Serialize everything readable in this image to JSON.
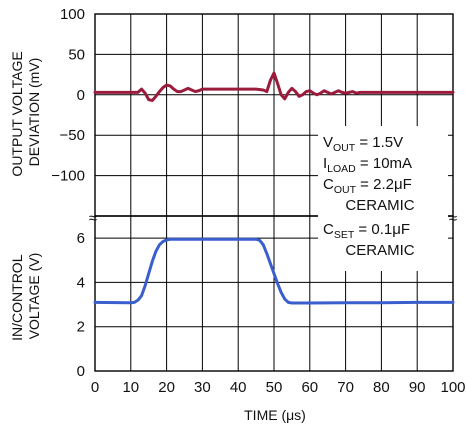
{
  "chart_data": [
    {
      "type": "line",
      "panel": "top",
      "ylabel_lines": [
        "OUTPUT VOLTAGE",
        "DEVIATION (mV)"
      ],
      "ylim": [
        -150,
        100
      ],
      "yticks": [
        {
          "value": 100,
          "label": "100"
        },
        {
          "value": 50,
          "label": "50"
        },
        {
          "value": 0,
          "label": "0"
        },
        {
          "value": -50,
          "label": "−50"
        },
        {
          "value": -100,
          "label": "−100"
        }
      ],
      "grid": true,
      "series": [
        {
          "color": "#9b1b3c",
          "points": [
            [
              0,
              3
            ],
            [
              11,
              3
            ],
            [
              12,
              3
            ],
            [
              13,
              7
            ],
            [
              14,
              2
            ],
            [
              15,
              -6
            ],
            [
              16,
              -7
            ],
            [
              17,
              -2
            ],
            [
              18,
              4
            ],
            [
              19,
              9
            ],
            [
              20,
              12
            ],
            [
              21,
              11
            ],
            [
              22,
              7
            ],
            [
              23,
              4
            ],
            [
              24,
              4
            ],
            [
              25,
              6
            ],
            [
              26,
              8
            ],
            [
              27,
              6
            ],
            [
              28,
              4
            ],
            [
              29,
              5
            ],
            [
              30,
              7
            ],
            [
              35,
              7
            ],
            [
              40,
              7
            ],
            [
              45,
              7
            ],
            [
              47,
              6
            ],
            [
              48,
              4
            ],
            [
              49,
              18
            ],
            [
              50,
              27
            ],
            [
              51,
              14
            ],
            [
              52,
              0
            ],
            [
              53,
              -5
            ],
            [
              54,
              3
            ],
            [
              55,
              8
            ],
            [
              56,
              4
            ],
            [
              57,
              -2
            ],
            [
              58,
              0
            ],
            [
              59,
              4
            ],
            [
              60,
              5
            ],
            [
              61,
              2
            ],
            [
              62,
              0
            ],
            [
              63,
              2
            ],
            [
              64,
              5
            ],
            [
              65,
              3
            ],
            [
              66,
              1
            ],
            [
              67,
              3
            ],
            [
              68,
              5
            ],
            [
              69,
              3
            ],
            [
              70,
              2
            ],
            [
              71,
              3
            ],
            [
              72,
              4
            ],
            [
              73,
              2
            ],
            [
              74,
              3
            ],
            [
              80,
              3
            ],
            [
              90,
              3
            ],
            [
              100,
              3
            ]
          ]
        }
      ]
    },
    {
      "type": "line",
      "panel": "bottom",
      "ylabel_lines": [
        "IN/CONTROL",
        "VOLTAGE (V)"
      ],
      "xlabel": "TIME (μs)",
      "ylim": [
        0,
        7
      ],
      "xlim": [
        0,
        100
      ],
      "xticks": [
        "0",
        "10",
        "20",
        "30",
        "40",
        "50",
        "60",
        "70",
        "80",
        "90",
        "100"
      ],
      "yticks": [
        {
          "value": 6,
          "label": "6"
        },
        {
          "value": 4,
          "label": "4"
        },
        {
          "value": 2,
          "label": "2"
        },
        {
          "value": 0,
          "label": "0"
        }
      ],
      "grid": true,
      "series": [
        {
          "color": "#3a5fcd",
          "points": [
            [
              0,
              3.1
            ],
            [
              10,
              3.08
            ],
            [
              11,
              3.1
            ],
            [
              12,
              3.2
            ],
            [
              13,
              3.4
            ],
            [
              14,
              3.85
            ],
            [
              15,
              4.4
            ],
            [
              16,
              4.95
            ],
            [
              17,
              5.4
            ],
            [
              18,
              5.7
            ],
            [
              19,
              5.85
            ],
            [
              20,
              5.92
            ],
            [
              21,
              5.95
            ],
            [
              25,
              5.95
            ],
            [
              30,
              5.95
            ],
            [
              35,
              5.95
            ],
            [
              40,
              5.95
            ],
            [
              45,
              5.95
            ],
            [
              46,
              5.9
            ],
            [
              47,
              5.7
            ],
            [
              48,
              5.3
            ],
            [
              49,
              4.85
            ],
            [
              50,
              4.4
            ],
            [
              51,
              3.95
            ],
            [
              52,
              3.55
            ],
            [
              53,
              3.25
            ],
            [
              54,
              3.1
            ],
            [
              55,
              3.07
            ],
            [
              60,
              3.07
            ],
            [
              70,
              3.08
            ],
            [
              80,
              3.08
            ],
            [
              90,
              3.1
            ],
            [
              100,
              3.1
            ]
          ]
        }
      ]
    }
  ],
  "annotation": {
    "vout": {
      "main": "V",
      "sub": "OUT",
      "value": " = 1.5V"
    },
    "iload": {
      "main": "I",
      "sub": "LOAD",
      "value": " = 10mA"
    },
    "cout": {
      "main": "C",
      "sub": "OUT",
      "value": " = 2.2μF"
    },
    "cout_type": "CERAMIC",
    "cset": {
      "main": "C",
      "sub": "SET",
      "value": " = 0.1μF"
    },
    "cset_type": "CERAMIC"
  },
  "axis_break": "≈"
}
